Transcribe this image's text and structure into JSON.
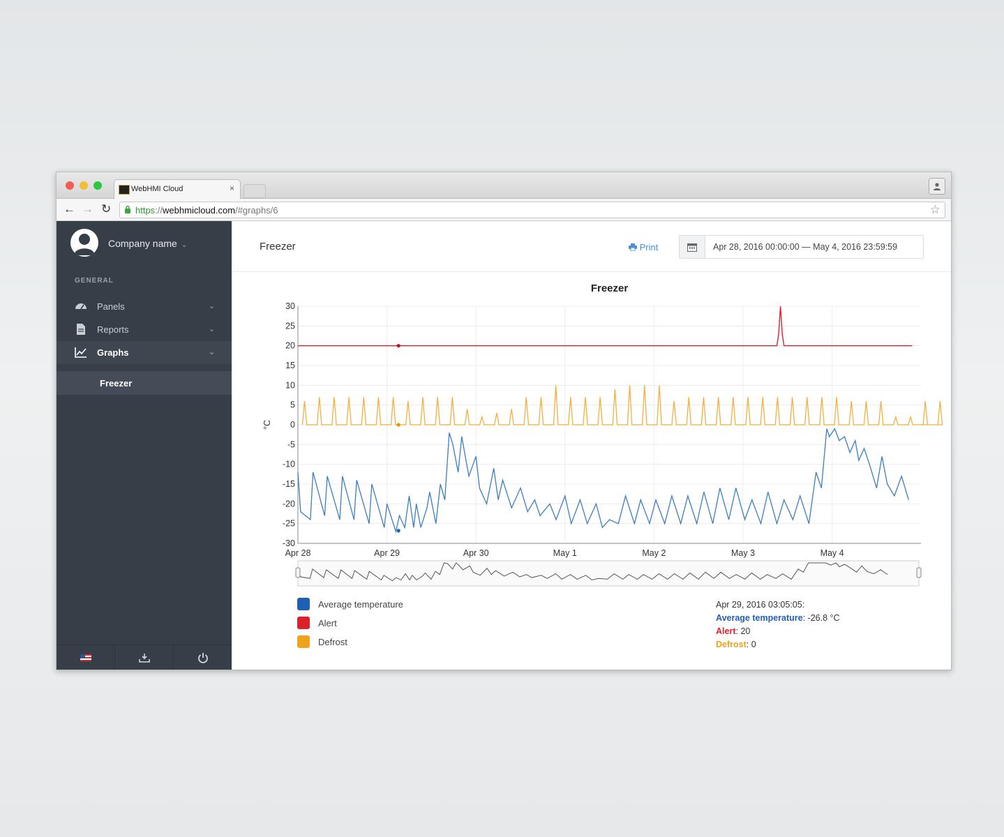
{
  "browser": {
    "tab_title": "WebHMI Cloud",
    "tab_close": "×",
    "url_scheme": "https",
    "url_sep": "://",
    "url_host": "webhmicloud.com",
    "url_path": "/#graphs/6"
  },
  "sidebar": {
    "company_name": "Company name",
    "section_label": "GENERAL",
    "items": [
      {
        "label": "Panels",
        "icon": "dashboard-icon"
      },
      {
        "label": "Reports",
        "icon": "document-icon"
      },
      {
        "label": "Graphs",
        "icon": "line-chart-icon"
      }
    ],
    "sub_item": "Freezer",
    "footer_icons": [
      "flag-icon",
      "download-icon",
      "power-icon"
    ]
  },
  "header": {
    "page_title": "Freezer",
    "print_label": "Print",
    "date_range": "Apr 28, 2016 00:00:00 — May 4, 2016 23:59:59"
  },
  "legend": [
    {
      "label": "Average temperature",
      "color": "#1f5fb5"
    },
    {
      "label": "Alert",
      "color": "#d9222a"
    },
    {
      "label": "Defrost",
      "color": "#f0a21c"
    }
  ],
  "tooltip": {
    "time": "Apr 29, 2016 03:05:05:",
    "rows": [
      {
        "name": "Average temperature",
        "value": "-26.8 °C",
        "color": "#1f5fb5"
      },
      {
        "name": "Alert",
        "value": "20",
        "color": "#d9222a"
      },
      {
        "name": "Defrost",
        "value": "0",
        "color": "#f0a21c"
      }
    ]
  },
  "chart_data": {
    "type": "line",
    "title": "Freezer",
    "ylabel": "°C",
    "ylim": [
      -30,
      30
    ],
    "yticks": [
      30,
      25,
      20,
      15,
      10,
      5,
      0,
      -5,
      -10,
      -15,
      -20,
      -25,
      -30
    ],
    "xlim_days": [
      0,
      6.9
    ],
    "xticks": [
      "Apr 28",
      "Apr 29",
      "Apr 30",
      "May 1",
      "May 2",
      "May 3",
      "May 4"
    ],
    "grid": true,
    "series": [
      {
        "name": "Alert",
        "color": "#d9222a",
        "x": [
          0,
          5.35,
          5.38,
          5.4,
          5.42,
          5.44,
          5.46,
          6.9
        ],
        "y": [
          20,
          20,
          20,
          23,
          30,
          23,
          20,
          20
        ]
      },
      {
        "name": "Defrost",
        "color": "#f0a21c",
        "period_days": 0.166,
        "peaks": [
          6,
          7,
          7,
          7,
          7,
          7,
          7,
          6,
          7,
          7,
          7,
          4,
          2,
          3,
          4,
          7,
          7,
          10,
          7,
          7,
          7,
          9,
          10,
          10,
          10,
          6,
          7,
          7,
          7,
          7,
          7,
          7,
          7,
          7,
          7,
          7,
          7,
          6,
          6,
          6,
          2,
          2,
          6,
          6
        ],
        "baseline": 0
      },
      {
        "name": "Average temperature",
        "color": "#3a7ec0",
        "x": [
          0,
          0.03,
          0.14,
          0.17,
          0.3,
          0.33,
          0.47,
          0.5,
          0.63,
          0.66,
          0.8,
          0.83,
          0.97,
          1.0,
          1.1,
          1.14,
          1.2,
          1.25,
          1.3,
          1.33,
          1.38,
          1.45,
          1.48,
          1.55,
          1.6,
          1.65,
          1.7,
          1.74,
          1.8,
          1.84,
          1.88,
          1.92,
          2.0,
          2.04,
          2.12,
          2.2,
          2.25,
          2.3,
          2.4,
          2.5,
          2.58,
          2.66,
          2.72,
          2.83,
          2.9,
          3.0,
          3.07,
          3.17,
          3.25,
          3.35,
          3.42,
          3.5,
          3.6,
          3.68,
          3.78,
          3.85,
          3.95,
          4.02,
          4.12,
          4.2,
          4.3,
          4.38,
          4.48,
          4.56,
          4.66,
          4.74,
          4.84,
          4.92,
          5.02,
          5.1,
          5.2,
          5.28,
          5.38,
          5.46,
          5.56,
          5.64,
          5.74,
          5.82,
          5.88,
          5.94,
          5.97,
          6.03,
          6.08,
          6.14,
          6.2,
          6.26,
          6.3,
          6.36,
          6.42,
          6.5,
          6.56,
          6.62,
          6.7,
          6.78,
          6.86
        ],
        "y": [
          -12,
          -22,
          -24,
          -12,
          -23,
          -13,
          -24,
          -13,
          -24,
          -14,
          -25,
          -15,
          -26,
          -20,
          -27,
          -23,
          -26,
          -18,
          -26,
          -20,
          -26,
          -21,
          -17,
          -25,
          -15,
          -19,
          -2,
          -5,
          -12,
          -3,
          -8,
          -13,
          -8,
          -16,
          -20,
          -11,
          -19,
          -14,
          -21,
          -16,
          -22,
          -19,
          -23,
          -20,
          -24,
          -18,
          -25,
          -19,
          -25,
          -20,
          -26,
          -24,
          -25,
          -18,
          -25,
          -19,
          -25,
          -19,
          -25,
          -18,
          -25,
          -18,
          -25,
          -17,
          -25,
          -16,
          -24,
          -16,
          -24,
          -19,
          -25,
          -17,
          -25,
          -19,
          -24,
          -18,
          -25,
          -12,
          -16,
          -1,
          -3,
          -1,
          -4,
          -3,
          -7,
          -4,
          -9,
          -6,
          -10,
          -16,
          -8,
          -15,
          -18,
          -13,
          -19
        ]
      }
    ],
    "highlight_points": [
      {
        "x": 1.13,
        "y": 20,
        "color": "#c0151d"
      },
      {
        "x": 1.13,
        "y": 0,
        "color": "#e89400"
      },
      {
        "x": 1.13,
        "y": -26.8,
        "color": "#1f5fb5"
      }
    ]
  }
}
